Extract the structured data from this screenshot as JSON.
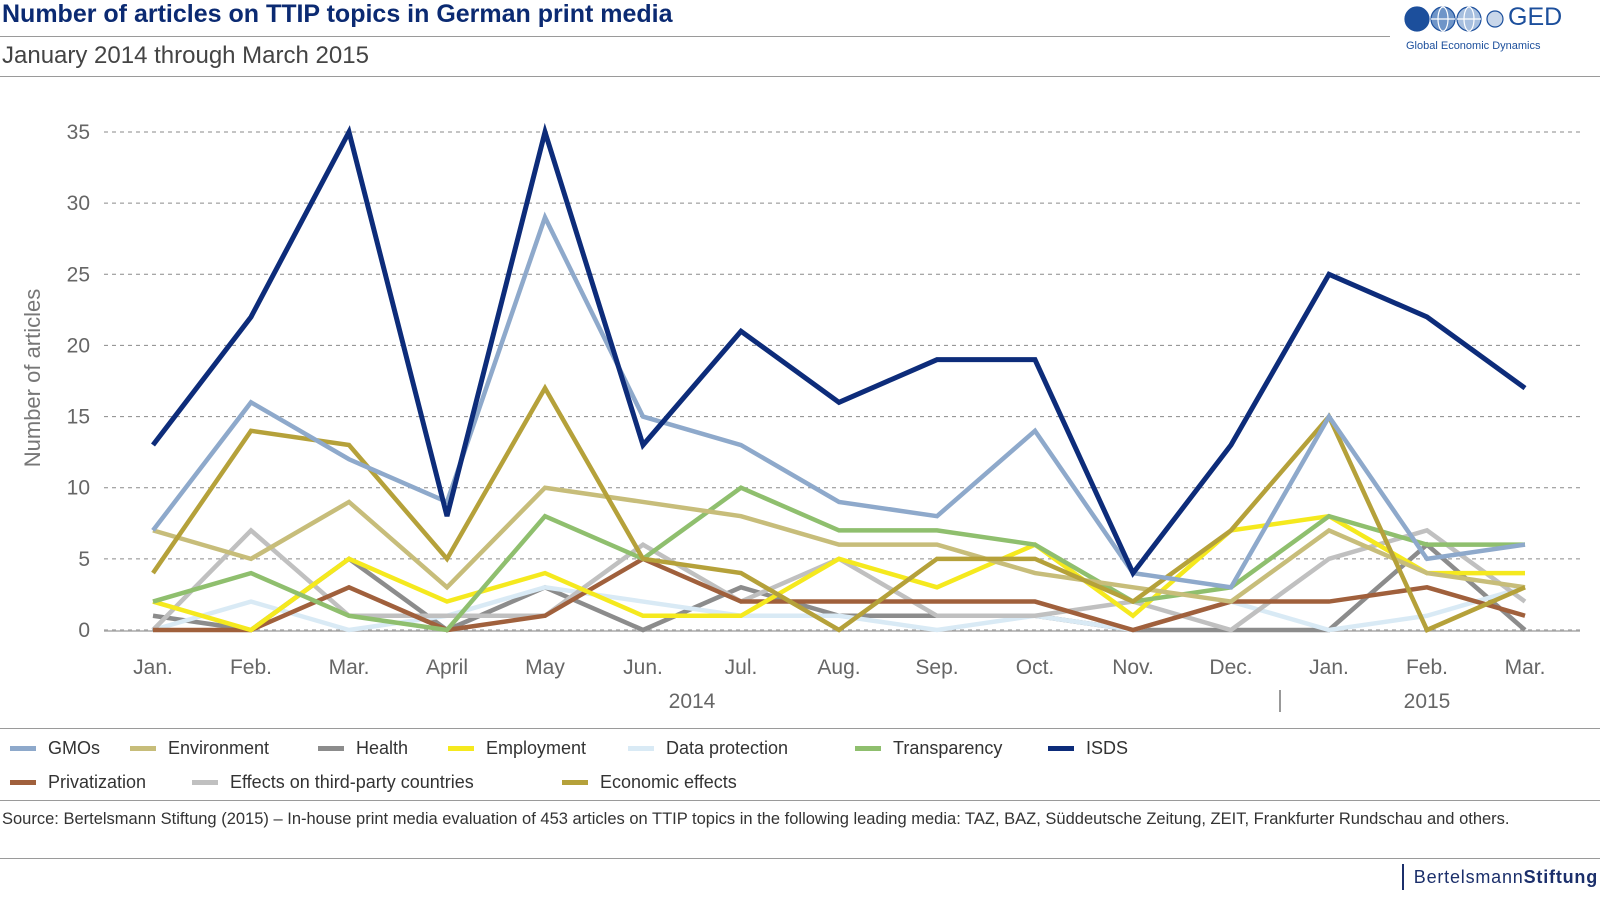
{
  "header": {
    "title": "Number of articles on TTIP topics in German print media",
    "subtitle": "January 2014 through March 2015"
  },
  "logo": {
    "ged_text": "GED",
    "ged_subtext": "Global Economic Dynamics",
    "bs_regular": "Bertelsmann",
    "bs_bold": "Stiftung",
    "color": "#1c4f9c"
  },
  "footer": {
    "source": "Source: Bertelsmann Stiftung (2015) – In-house print media evaluation of 453 articles on TTIP topics in the following leading media: TAZ, BAZ, Süddeutsche Zeitung, ZEIT, Frankfurter Rundschau and others."
  },
  "chart_data": {
    "type": "line",
    "title": "Number of articles on TTIP topics in German print media",
    "subtitle": "January 2014 through March 2015",
    "ylabel": "Number of articles",
    "xlabel": "",
    "ylim": [
      0,
      35
    ],
    "yticks": [
      0,
      5,
      10,
      15,
      20,
      25,
      30,
      35
    ],
    "grid": "horizontal dashed",
    "legend_position": "bottom",
    "categories": [
      "Jan.",
      "Feb.",
      "Mar.",
      "April",
      "May",
      "Jun.",
      "Jul.",
      "Aug.",
      "Sep.",
      "Oct.",
      "Nov.",
      "Dec.",
      "Jan.",
      "Feb.",
      "Mar."
    ],
    "year_groups": [
      {
        "label": "2014",
        "start": 0,
        "end": 11
      },
      {
        "label": "2015",
        "start": 12,
        "end": 14
      }
    ],
    "series": [
      {
        "name": "Health",
        "color": "#8c8c8c",
        "values": [
          1,
          0,
          5,
          0,
          3,
          0,
          3,
          1,
          1,
          1,
          0,
          0,
          0,
          6,
          0
        ]
      },
      {
        "name": "Data protection",
        "color": "#d9eaf5",
        "values": [
          0,
          2,
          0,
          1,
          3,
          2,
          1,
          1,
          0,
          1,
          0,
          2,
          0,
          1,
          3
        ]
      },
      {
        "name": "Effects on third-party countries",
        "color": "#c0c0c0",
        "values": [
          0,
          7,
          1,
          1,
          1,
          6,
          2,
          5,
          1,
          1,
          2,
          0,
          5,
          7,
          2
        ]
      },
      {
        "name": "Privatization",
        "color": "#a0603c",
        "values": [
          0,
          0,
          3,
          0,
          1,
          5,
          2,
          2,
          2,
          2,
          0,
          2,
          2,
          3,
          1
        ]
      },
      {
        "name": "Employment",
        "color": "#f5e91e",
        "values": [
          2,
          0,
          5,
          2,
          4,
          1,
          1,
          5,
          3,
          6,
          1,
          7,
          8,
          4,
          4
        ]
      },
      {
        "name": "Transparency",
        "color": "#8fbf6e",
        "values": [
          2,
          4,
          1,
          0,
          8,
          5,
          10,
          7,
          7,
          6,
          2,
          3,
          8,
          6,
          6
        ]
      },
      {
        "name": "Environment",
        "color": "#c7bd7a",
        "values": [
          7,
          5,
          9,
          3,
          10,
          9,
          8,
          6,
          6,
          4,
          3,
          2,
          7,
          4,
          3
        ]
      },
      {
        "name": "Economic effects",
        "color": "#b5a13a",
        "values": [
          4,
          14,
          13,
          5,
          17,
          5,
          4,
          0,
          5,
          5,
          2,
          7,
          15,
          0,
          3
        ]
      },
      {
        "name": "GMOs",
        "color": "#8ea9cb",
        "values": [
          7,
          16,
          12,
          9,
          29,
          15,
          13,
          9,
          8,
          14,
          4,
          3,
          15,
          5,
          6
        ]
      },
      {
        "name": "ISDS",
        "color": "#0d2c7a",
        "values": [
          13,
          22,
          35,
          8,
          35,
          13,
          21,
          16,
          19,
          19,
          4,
          13,
          25,
          22,
          17
        ]
      }
    ],
    "legend_order": [
      "GMOs",
      "Environment",
      "Health",
      "Employment",
      "Data protection",
      "Transparency",
      "ISDS",
      "Privatization",
      "Effects on third-party countries",
      "Economic effects"
    ]
  }
}
